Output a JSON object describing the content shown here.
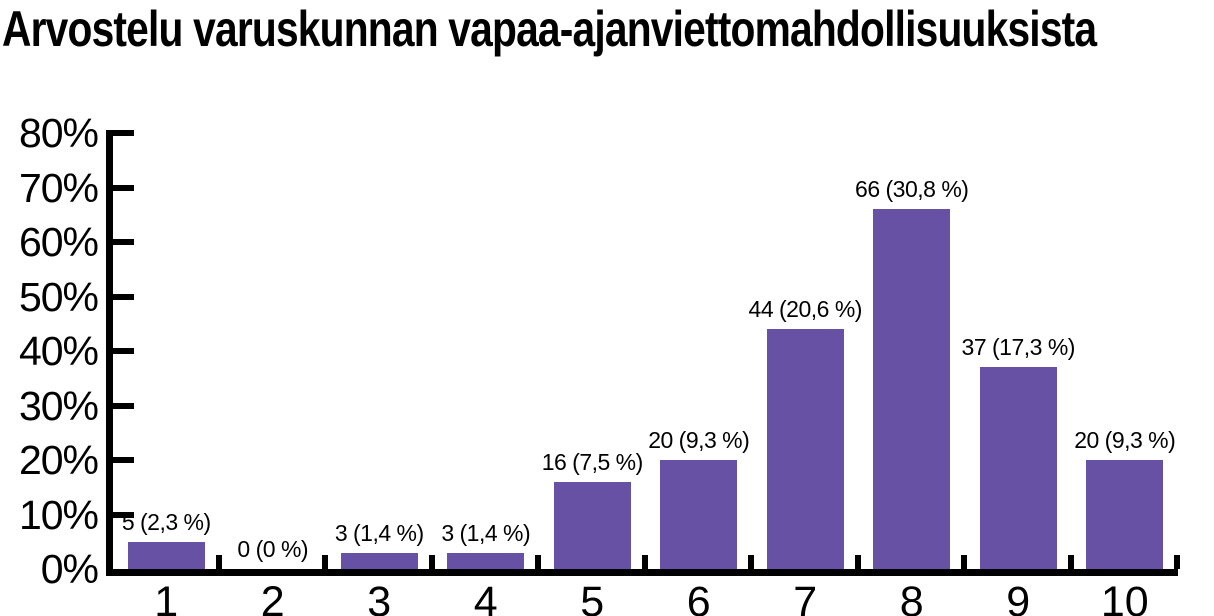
{
  "title": "Arvostelu varuskunnan vapaa-ajanviettomahdollisuuksista",
  "chart_data": {
    "type": "bar",
    "title": "Arvostelu varuskunnan vapaa-ajanviettomahdollisuuksista",
    "xlabel": "",
    "ylabel": "",
    "categories": [
      "1",
      "2",
      "3",
      "4",
      "5",
      "6",
      "7",
      "8",
      "9",
      "10"
    ],
    "values": [
      5,
      0,
      3,
      3,
      16,
      20,
      44,
      66,
      37,
      20
    ],
    "percentages": [
      2.3,
      0,
      1.4,
      1.4,
      7.5,
      9.3,
      20.6,
      30.8,
      17.3,
      9.3
    ],
    "bar_labels": [
      "5 (2,3 %)",
      "0 (0 %)",
      "3 (1,4 %)",
      "3 (1,4 %)",
      "16 (7,5 %)",
      "20 (9,3 %)",
      "44 (20,6 %)",
      "66 (30,8 %)",
      "37 (17,3 %)",
      "20 (9,3 %)"
    ],
    "ytick_labels": [
      "80%",
      "70%",
      "60%",
      "50%",
      "40%",
      "30%",
      "20%",
      "10%",
      "0%"
    ],
    "ylim": [
      0,
      80
    ],
    "grid": false,
    "legend": false,
    "bar_color": "#6751a4",
    "axis_color": "#000000",
    "text_color": "#000000",
    "background_color": "#ffffff"
  }
}
